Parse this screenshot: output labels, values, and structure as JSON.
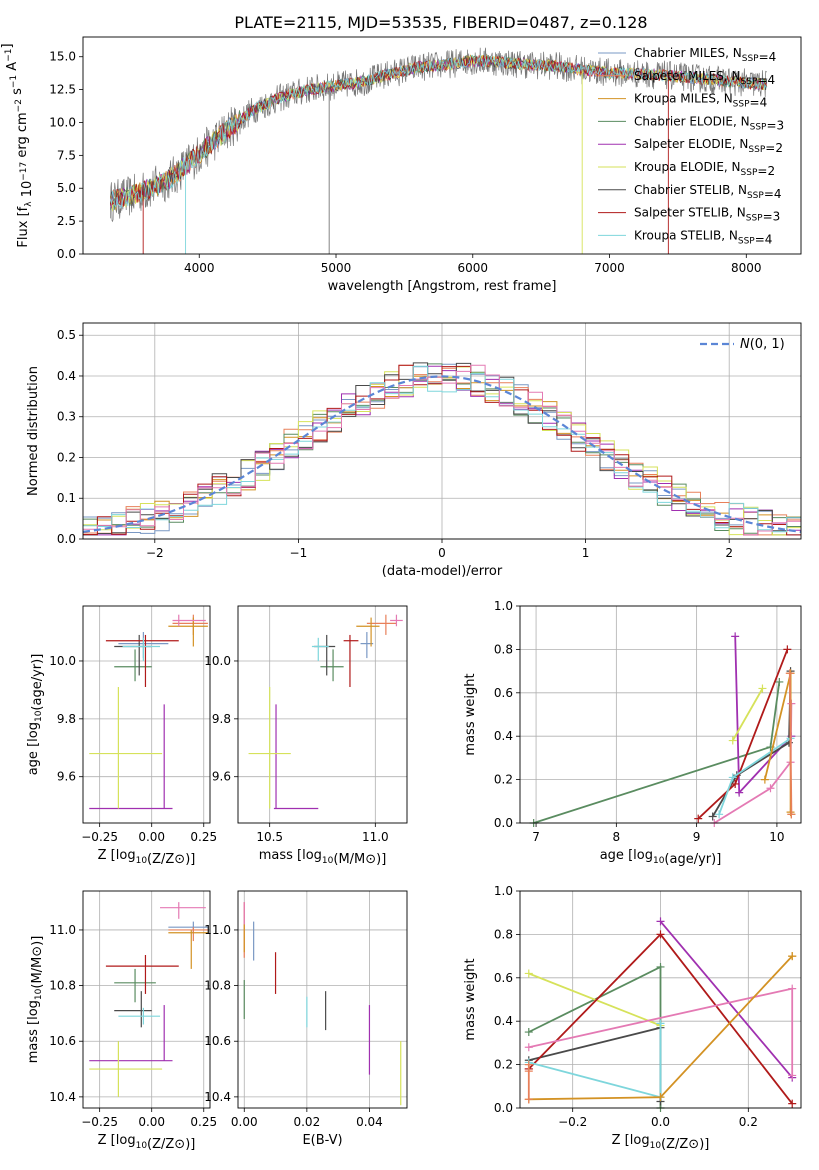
{
  "figure": {
    "title": "PLATE=2115, MJD=53535, FIBERID=0487, z=0.128"
  },
  "colors": {
    "chabrier_miles": "#7a98c4",
    "salpeter_miles": "#e8805a",
    "kroupa_miles": "#d39224",
    "chabrier_elodie": "#5a8c60",
    "salpeter_elodie": "#a030b0",
    "kroupa_elodie": "#d6e25a",
    "chabrier_stelib": "#4a4a4a",
    "salpeter_stelib": "#b01a1a",
    "kroupa_stelib": "#7ed6dc",
    "pink": "#e47ab4",
    "gaussian": "#5b86d6",
    "grid": "#b0b0b0"
  },
  "chart_data": [
    {
      "type": "line",
      "xlabel": "wavelength [Angstrom, rest frame]",
      "ylabel": "Flux [f_λ 10^-17 erg cm^-2 s^-1 A^-1]",
      "xlim": [
        3150,
        8400
      ],
      "ylim": [
        0,
        16.5
      ],
      "xticks": [
        "4000",
        "5000",
        "6000",
        "7000",
        "8000"
      ],
      "yticks": [
        "0.0",
        "2.5",
        "5.0",
        "7.5",
        "10.0",
        "12.5",
        "15.0"
      ],
      "grid": false,
      "legend": "right",
      "legend_entries": [
        {
          "label": "Chabrier MILES, N_SSP=4",
          "color_key": "chabrier_miles"
        },
        {
          "label": "Salpeter MILES, N_SSP=4",
          "color_key": "salpeter_miles"
        },
        {
          "label": "Kroupa MILES, N_SSP=4",
          "color_key": "kroupa_miles"
        },
        {
          "label": "Chabrier ELODIE, N_SSP=3",
          "color_key": "chabrier_elodie"
        },
        {
          "label": "Salpeter ELODIE, N_SSP=2",
          "color_key": "salpeter_elodie"
        },
        {
          "label": "Kroupa ELODIE, N_SSP=2",
          "color_key": "kroupa_elodie"
        },
        {
          "label": "Chabrier STELIB, N_SSP=4",
          "color_key": "chabrier_stelib"
        },
        {
          "label": "Salpeter STELIB, N_SSP=3",
          "color_key": "salpeter_stelib"
        },
        {
          "label": "Kroupa STELIB, N_SSP=4",
          "color_key": "kroupa_stelib"
        }
      ],
      "continuum": {
        "x": [
          3350,
          3500,
          3650,
          3800,
          4000,
          4200,
          4400,
          4600,
          4800,
          5000,
          5200,
          5400,
          5600,
          5800,
          6000,
          6200,
          6400,
          6600,
          6800,
          7000,
          7200,
          7400,
          7600,
          7800,
          8000,
          8150
        ],
        "y": [
          4.0,
          4.4,
          5.0,
          5.8,
          7.6,
          9.4,
          11.0,
          11.9,
          12.5,
          12.8,
          13.1,
          13.7,
          14.2,
          14.4,
          14.7,
          14.6,
          14.4,
          14.3,
          14.0,
          13.8,
          13.7,
          13.6,
          13.4,
          13.2,
          13.0,
          12.9
        ]
      }
    },
    {
      "type": "area",
      "xlabel": "(data-model)/error",
      "ylabel": "Normed distribution",
      "xlim": [
        -2.5,
        2.5
      ],
      "ylim": [
        0,
        0.53
      ],
      "xticks": [
        "−2",
        "−1",
        "0",
        "1",
        "2"
      ],
      "yticks": [
        "0.0",
        "0.1",
        "0.2",
        "0.3",
        "0.4",
        "0.5"
      ],
      "grid": true,
      "legend": "top-right",
      "legend_label": "N(0,1)"
    },
    {
      "type": "scatter",
      "xlabel": "Z [log10(Z/Z⊙)]",
      "ylabel": "age [log10(age/yr)]",
      "xlim": [
        -0.33,
        0.28
      ],
      "ylim": [
        9.44,
        10.19
      ],
      "xticks": [
        "−0.25",
        "0.00",
        "0.25"
      ],
      "yticks": [
        "9.6",
        "9.8",
        "10.0"
      ],
      "grid": true,
      "points": [
        {
          "c": "chabrier_miles",
          "x": -0.04,
          "y": 10.06,
          "xe": [
            -0.16,
            0.08
          ],
          "ye": [
            10.01,
            10.1
          ]
        },
        {
          "c": "salpeter_miles",
          "x": 0.2,
          "y": 10.13,
          "xe": [
            0.1,
            0.27
          ],
          "ye": [
            10.09,
            10.16
          ]
        },
        {
          "c": "kroupa_miles",
          "x": 0.2,
          "y": 10.12,
          "xe": [
            0.08,
            0.27
          ],
          "ye": [
            10.05,
            10.15
          ]
        },
        {
          "c": "chabrier_elodie",
          "x": -0.08,
          "y": 9.98,
          "xe": [
            -0.18,
            0.0
          ],
          "ye": [
            9.93,
            10.04
          ]
        },
        {
          "c": "salpeter_elodie",
          "x": 0.06,
          "y": 9.49,
          "xe": [
            -0.3,
            0.1
          ],
          "ye": [
            9.49,
            9.85
          ]
        },
        {
          "c": "kroupa_elodie",
          "x": -0.16,
          "y": 9.68,
          "xe": [
            -0.3,
            0.05
          ],
          "ye": [
            9.49,
            9.91
          ]
        },
        {
          "c": "chabrier_stelib",
          "x": -0.06,
          "y": 10.05,
          "xe": [
            -0.18,
            0.0
          ],
          "ye": [
            9.95,
            10.09
          ]
        },
        {
          "c": "salpeter_stelib",
          "x": -0.03,
          "y": 10.07,
          "xe": [
            -0.22,
            0.13
          ],
          "ye": [
            9.91,
            10.09
          ]
        },
        {
          "c": "kroupa_stelib",
          "x": -0.04,
          "y": 10.05,
          "xe": [
            -0.14,
            0.04
          ],
          "ye": [
            10.0,
            10.08
          ]
        },
        {
          "c": "pink",
          "x": 0.13,
          "y": 10.14,
          "xe": [
            0.1,
            0.26
          ],
          "ye": [
            10.12,
            10.16
          ]
        }
      ]
    },
    {
      "type": "scatter",
      "xlabel": "mass [log10(M/M⊙)]",
      "ylabel": "",
      "xlim": [
        10.35,
        11.15
      ],
      "ylim": [
        9.44,
        10.19
      ],
      "xticks": [
        "10.5",
        "11.0"
      ],
      "yticks": [
        "9.6",
        "9.8",
        "10.0"
      ],
      "grid": true,
      "points": [
        {
          "c": "chabrier_miles",
          "x": 10.96,
          "y": 10.06,
          "xe": [
            10.93,
            10.99
          ],
          "ye": [
            10.01,
            10.1
          ]
        },
        {
          "c": "salpeter_miles",
          "x": 11.05,
          "y": 10.13,
          "xe": [
            10.96,
            11.1
          ],
          "ye": [
            10.09,
            10.16
          ]
        },
        {
          "c": "kroupa_miles",
          "x": 10.98,
          "y": 10.12,
          "xe": [
            10.91,
            11.02
          ],
          "ye": [
            10.05,
            10.15
          ]
        },
        {
          "c": "chabrier_elodie",
          "x": 10.8,
          "y": 9.98,
          "xe": [
            10.74,
            10.85
          ],
          "ye": [
            9.93,
            10.04
          ]
        },
        {
          "c": "salpeter_elodie",
          "x": 10.53,
          "y": 9.49,
          "xe": [
            10.52,
            10.73
          ],
          "ye": [
            9.49,
            9.85
          ]
        },
        {
          "c": "kroupa_elodie",
          "x": 10.5,
          "y": 9.68,
          "xe": [
            10.4,
            10.6
          ],
          "ye": [
            9.49,
            9.91
          ]
        },
        {
          "c": "chabrier_stelib",
          "x": 10.77,
          "y": 10.05,
          "xe": [
            10.71,
            10.81
          ],
          "ye": [
            9.95,
            10.09
          ]
        },
        {
          "c": "salpeter_stelib",
          "x": 10.88,
          "y": 10.07,
          "xe": [
            10.85,
            10.92
          ],
          "ye": [
            9.91,
            10.09
          ]
        },
        {
          "c": "kroupa_stelib",
          "x": 10.73,
          "y": 10.05,
          "xe": [
            10.7,
            10.78
          ],
          "ye": [
            10.0,
            10.08
          ]
        },
        {
          "c": "pink",
          "x": 11.1,
          "y": 10.14,
          "xe": [
            11.07,
            11.13
          ],
          "ye": [
            10.12,
            10.16
          ]
        }
      ]
    },
    {
      "type": "line",
      "xlabel": "age [log10(age/yr)]",
      "ylabel": "mass weight",
      "xlim": [
        6.8,
        10.3
      ],
      "ylim": [
        0,
        1.0
      ],
      "xticks": [
        "7",
        "8",
        "9",
        "10"
      ],
      "yticks": [
        "0.0",
        "0.2",
        "0.4",
        "0.6",
        "0.8",
        "1.0"
      ],
      "grid": true,
      "series": [
        {
          "c": "chabrier_elodie",
          "x": [
            6.97,
            9.92,
            10.03
          ],
          "y": [
            0.0,
            0.35,
            0.65
          ]
        },
        {
          "c": "salpeter_elodie",
          "x": [
            9.48,
            9.53,
            10.18
          ],
          "y": [
            0.86,
            0.14,
            0.4
          ]
        },
        {
          "c": "kroupa_elodie",
          "x": [
            9.45,
            9.82
          ],
          "y": [
            0.38,
            0.62
          ]
        },
        {
          "c": "chabrier_stelib",
          "x": [
            9.2,
            9.5,
            10.15,
            10.17
          ],
          "y": [
            0.03,
            0.22,
            0.37,
            0.7
          ]
        },
        {
          "c": "salpeter_stelib",
          "x": [
            9.02,
            9.48,
            10.13
          ],
          "y": [
            0.02,
            0.18,
            0.8
          ]
        },
        {
          "c": "kroupa_stelib",
          "x": [
            9.28,
            9.45,
            10.17
          ],
          "y": [
            0.04,
            0.21,
            0.39
          ]
        },
        {
          "c": "pink",
          "x": [
            9.22,
            9.92,
            10.17,
            10.18
          ],
          "y": [
            0.0,
            0.16,
            0.28,
            0.55
          ]
        },
        {
          "c": "kroupa_miles",
          "x": [
            9.85,
            10.17,
            10.17,
            10.18
          ],
          "y": [
            0.2,
            0.69,
            0.05,
            0.04
          ]
        },
        {
          "c": "salpeter_miles",
          "x": [
            10.16,
            10.18
          ],
          "y": [
            0.69,
            0.04
          ]
        }
      ]
    },
    {
      "type": "scatter",
      "xlabel": "Z [log10(Z/Z⊙)]",
      "ylabel": "mass [log10(M/M⊙)]",
      "xlim": [
        -0.33,
        0.28
      ],
      "ylim": [
        10.36,
        11.14
      ],
      "xticks": [
        "−0.25",
        "0.00",
        "0.25"
      ],
      "yticks": [
        "10.4",
        "10.6",
        "10.8",
        "11.0"
      ],
      "grid": true,
      "points": [
        {
          "c": "chabrier_miles",
          "x": 0.2,
          "y": 11.01,
          "xe": [
            0.08,
            0.27
          ],
          "ye": [
            10.99,
            11.03
          ]
        },
        {
          "c": "salpeter_miles",
          "x": 0.2,
          "y": 11.0,
          "xe": [
            0.08,
            0.27
          ],
          "ye": [
            10.96,
            11.01
          ]
        },
        {
          "c": "kroupa_miles",
          "x": 0.19,
          "y": 10.99,
          "xe": [
            0.08,
            0.27
          ],
          "ye": [
            10.86,
            11.0
          ]
        },
        {
          "c": "chabrier_elodie",
          "x": -0.08,
          "y": 10.81,
          "xe": [
            -0.18,
            0.02
          ],
          "ye": [
            10.74,
            10.86
          ]
        },
        {
          "c": "salpeter_elodie",
          "x": 0.06,
          "y": 10.53,
          "xe": [
            -0.3,
            0.1
          ],
          "ye": [
            10.53,
            10.73
          ]
        },
        {
          "c": "kroupa_elodie",
          "x": -0.16,
          "y": 10.5,
          "xe": [
            -0.3,
            0.05
          ],
          "ye": [
            10.4,
            10.6
          ]
        },
        {
          "c": "chabrier_stelib",
          "x": -0.05,
          "y": 10.71,
          "xe": [
            -0.18,
            0.0
          ],
          "ye": [
            10.65,
            10.78
          ]
        },
        {
          "c": "salpeter_stelib",
          "x": -0.03,
          "y": 10.87,
          "xe": [
            -0.22,
            0.13
          ],
          "ye": [
            10.77,
            10.91
          ]
        },
        {
          "c": "kroupa_stelib",
          "x": -0.04,
          "y": 10.69,
          "xe": [
            -0.16,
            0.04
          ],
          "ye": [
            10.66,
            10.72
          ]
        },
        {
          "c": "pink",
          "x": 0.13,
          "y": 11.08,
          "xe": [
            0.04,
            0.26
          ],
          "ye": [
            11.04,
            11.1
          ]
        }
      ]
    },
    {
      "type": "scatter",
      "xlabel": "E(B-V)",
      "ylabel": "",
      "xlim": [
        -0.002,
        0.052
      ],
      "ylim": [
        10.36,
        11.14
      ],
      "xticks": [
        "0.00",
        "0.02",
        "0.04"
      ],
      "yticks": [
        "10.4",
        "10.6",
        "10.8",
        "11.0"
      ],
      "grid": true,
      "points": [
        {
          "c": "chabrier_miles",
          "x": 0.003,
          "y": 11.0,
          "ye": [
            10.89,
            11.03
          ]
        },
        {
          "c": "salpeter_miles",
          "x": 0.0,
          "y": 10.99,
          "ye": [
            10.9,
            11.1
          ]
        },
        {
          "c": "kroupa_miles",
          "x": 0.0,
          "y": 10.98,
          "ye": [
            10.92,
            11.02
          ]
        },
        {
          "c": "chabrier_elodie",
          "x": 0.0,
          "y": 10.77,
          "ye": [
            10.68,
            10.82
          ]
        },
        {
          "c": "salpeter_elodie",
          "x": 0.04,
          "y": 10.6,
          "ye": [
            10.48,
            10.73
          ]
        },
        {
          "c": "kroupa_elodie",
          "x": 0.05,
          "y": 10.5,
          "ye": [
            10.37,
            10.6
          ]
        },
        {
          "c": "chabrier_stelib",
          "x": 0.026,
          "y": 10.7,
          "ye": [
            10.64,
            10.78
          ]
        },
        {
          "c": "salpeter_stelib",
          "x": 0.01,
          "y": 10.85,
          "ye": [
            10.77,
            10.92
          ]
        },
        {
          "c": "kroupa_stelib",
          "x": 0.02,
          "y": 10.7,
          "ye": [
            10.65,
            10.76
          ]
        },
        {
          "c": "pink",
          "x": 0.0,
          "y": 11.08,
          "ye": [
            11.02,
            11.1
          ]
        }
      ]
    },
    {
      "type": "line",
      "xlabel": "Z [log10(Z/Z⊙)]",
      "ylabel": "mass weight",
      "xlim": [
        -0.32,
        0.32
      ],
      "ylim": [
        0,
        1.0
      ],
      "xticks": [
        "−0.2",
        "0.0",
        "0.2"
      ],
      "yticks": [
        "0.0",
        "0.2",
        "0.4",
        "0.6",
        "0.8",
        "1.0"
      ],
      "grid": true,
      "series": [
        {
          "c": "chabrier_elodie",
          "x": [
            -0.3,
            0.0,
            0.0
          ],
          "y": [
            0.35,
            0.65,
            0.0
          ]
        },
        {
          "c": "salpeter_elodie",
          "x": [
            0.0,
            0.3
          ],
          "y": [
            0.86,
            0.14
          ]
        },
        {
          "c": "kroupa_elodie",
          "x": [
            -0.3,
            0.0
          ],
          "y": [
            0.62,
            0.38
          ]
        },
        {
          "c": "chabrier_stelib",
          "x": [
            -0.3,
            0.0,
            0.0
          ],
          "y": [
            0.22,
            0.37,
            0.03
          ]
        },
        {
          "c": "salpeter_stelib",
          "x": [
            -0.3,
            -0.3,
            0.0,
            0.3
          ],
          "y": [
            0.18,
            0.18,
            0.8,
            0.02
          ]
        },
        {
          "c": "kroupa_stelib",
          "x": [
            -0.3,
            0.0,
            0.0
          ],
          "y": [
            0.21,
            0.05,
            0.39
          ]
        },
        {
          "c": "pink",
          "x": [
            -0.3,
            0.3,
            0.3
          ],
          "y": [
            0.28,
            0.55,
            0.15
          ]
        },
        {
          "c": "kroupa_miles",
          "x": [
            -0.3,
            0.0,
            0.3,
            0.3
          ],
          "y": [
            0.04,
            0.05,
            0.7,
            0.7
          ]
        },
        {
          "c": "salpeter_miles",
          "x": [
            -0.3,
            -0.3,
            -0.3
          ],
          "y": [
            0.04,
            0.17,
            0.2
          ]
        }
      ]
    }
  ]
}
